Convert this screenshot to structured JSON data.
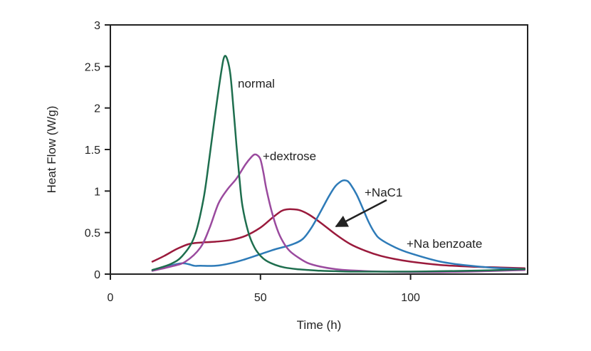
{
  "chart_data": {
    "type": "line",
    "title": "",
    "xlabel": "Time (h)",
    "ylabel": "Heat Flow (W/g)",
    "xlim": [
      0,
      139
    ],
    "ylim": [
      0,
      3
    ],
    "x_ticks": [
      0,
      50,
      100
    ],
    "x_tick_labels": [
      "0",
      "50",
      "100"
    ],
    "y_ticks": [
      0,
      0.5,
      1,
      1.5,
      2,
      2.5,
      3
    ],
    "y_tick_labels": [
      "0",
      "0.5",
      "1",
      "1.5",
      "2",
      "2.5",
      "3"
    ],
    "grid": false,
    "legend": "none",
    "series": [
      {
        "name": "normal",
        "color": "#1e6e4e",
        "x": [
          14,
          20,
          24,
          28,
          31,
          33,
          35,
          37,
          38,
          39,
          40,
          41,
          42,
          43,
          44,
          46,
          48,
          50,
          52,
          55,
          58,
          62,
          66,
          70,
          75,
          80,
          90,
          100,
          110,
          120,
          130,
          138
        ],
        "y": [
          0.05,
          0.12,
          0.22,
          0.45,
          0.9,
          1.4,
          1.95,
          2.45,
          2.62,
          2.58,
          2.4,
          2.0,
          1.55,
          1.15,
          0.82,
          0.5,
          0.32,
          0.22,
          0.16,
          0.11,
          0.08,
          0.06,
          0.05,
          0.04,
          0.035,
          0.03,
          0.03,
          0.03,
          0.035,
          0.04,
          0.05,
          0.06
        ]
      },
      {
        "name": "+dextrose",
        "color": "#9a4a9e",
        "x": [
          14,
          20,
          25,
          30,
          33,
          36,
          39,
          42,
          45,
          47,
          48,
          49,
          50,
          51,
          52,
          54,
          56,
          58,
          60,
          63,
          66,
          70,
          75,
          80,
          90,
          100,
          110,
          120,
          130,
          138
        ],
        "y": [
          0.04,
          0.09,
          0.15,
          0.32,
          0.55,
          0.85,
          1.02,
          1.15,
          1.32,
          1.41,
          1.44,
          1.43,
          1.38,
          1.22,
          1.02,
          0.72,
          0.5,
          0.36,
          0.27,
          0.19,
          0.13,
          0.09,
          0.06,
          0.045,
          0.03,
          0.025,
          0.025,
          0.03,
          0.04,
          0.05
        ]
      },
      {
        "name": "+NaC1",
        "color": "#9a1a3c",
        "x": [
          14,
          18,
          22,
          26,
          30,
          35,
          40,
          45,
          50,
          54,
          57,
          59,
          61,
          63,
          66,
          70,
          75,
          80,
          85,
          90,
          95,
          100,
          110,
          120,
          130,
          138
        ],
        "y": [
          0.15,
          0.22,
          0.3,
          0.36,
          0.38,
          0.39,
          0.41,
          0.46,
          0.56,
          0.68,
          0.76,
          0.78,
          0.78,
          0.77,
          0.72,
          0.62,
          0.48,
          0.36,
          0.28,
          0.22,
          0.18,
          0.15,
          0.11,
          0.09,
          0.08,
          0.07
        ]
      },
      {
        "name": "+Na benzoate",
        "color": "#2e7bb8",
        "x": [
          14,
          18,
          22,
          24,
          26,
          28,
          30,
          35,
          40,
          45,
          50,
          55,
          60,
          64,
          67,
          70,
          73,
          75,
          77,
          78,
          79,
          80,
          82,
          84,
          86,
          88,
          90,
          95,
          100,
          110,
          120,
          130,
          138
        ],
        "y": [
          0.04,
          0.08,
          0.12,
          0.13,
          0.12,
          0.1,
          0.1,
          0.1,
          0.13,
          0.18,
          0.24,
          0.3,
          0.35,
          0.42,
          0.56,
          0.75,
          0.95,
          1.06,
          1.12,
          1.13,
          1.12,
          1.08,
          0.96,
          0.8,
          0.63,
          0.5,
          0.42,
          0.32,
          0.25,
          0.15,
          0.1,
          0.07,
          0.06
        ]
      }
    ],
    "annotations": [
      {
        "text": "normal",
        "series": "normal"
      },
      {
        "text": "+dextrose",
        "series": "+dextrose"
      },
      {
        "text": "+NaC1",
        "series": "+NaC1"
      },
      {
        "text": "+Na benzoate",
        "series": "+Na benzoate"
      }
    ]
  }
}
